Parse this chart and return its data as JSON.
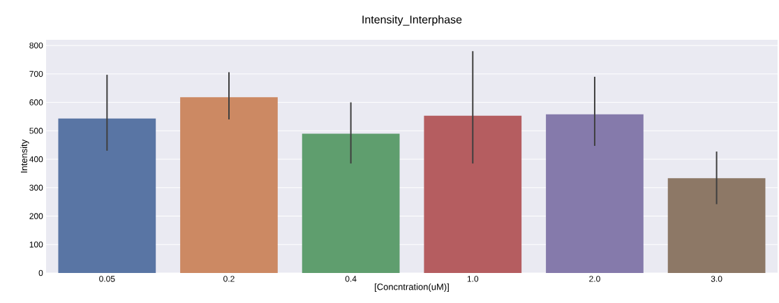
{
  "chart_data": {
    "type": "bar",
    "title": "Intensity_Interphase",
    "xlabel": "[Concntration(uM)]",
    "ylabel": "Intensity",
    "categories": [
      "0.05",
      "0.2",
      "0.4",
      "1.0",
      "2.0",
      "3.0"
    ],
    "values": [
      543,
      618,
      490,
      553,
      558,
      333
    ],
    "errors": [
      [
        430,
        697
      ],
      [
        540,
        706
      ],
      [
        385,
        600
      ],
      [
        385,
        780
      ],
      [
        447,
        690
      ],
      [
        242,
        427
      ]
    ],
    "colors": [
      "#5975a4",
      "#cc8963",
      "#5f9e6e",
      "#b55d60",
      "#857aab",
      "#8d7866"
    ],
    "ylim": [
      0,
      820
    ],
    "yticks": [
      0,
      100,
      200,
      300,
      400,
      500,
      600,
      700,
      800
    ],
    "grid": "y"
  }
}
